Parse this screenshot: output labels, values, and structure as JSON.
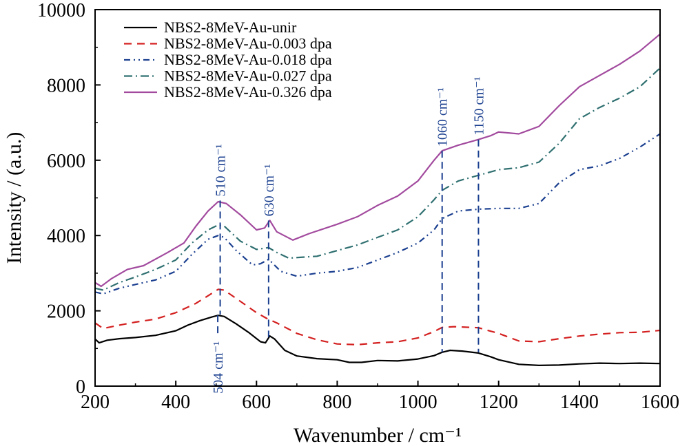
{
  "chart_data": {
    "type": "line",
    "xlabel": "Wavenumber / cm⁻¹",
    "ylabel": "Intensity / (a.u.)",
    "xlim": [
      200,
      1600
    ],
    "ylim": [
      0,
      10000
    ],
    "xticks": [
      200,
      400,
      600,
      800,
      1000,
      1200,
      1400,
      1600
    ],
    "yticks": [
      0,
      2000,
      4000,
      6000,
      8000,
      10000
    ],
    "grid": false,
    "legend_position": "top-left",
    "series": [
      {
        "name": "NBS2-8MeV-Au-unir",
        "color": "#000000",
        "dash": "solid",
        "points": [
          [
            200,
            1250
          ],
          [
            210,
            1150
          ],
          [
            230,
            1220
          ],
          [
            260,
            1260
          ],
          [
            300,
            1290
          ],
          [
            350,
            1350
          ],
          [
            400,
            1470
          ],
          [
            430,
            1620
          ],
          [
            460,
            1740
          ],
          [
            490,
            1840
          ],
          [
            505,
            1880
          ],
          [
            520,
            1850
          ],
          [
            550,
            1650
          ],
          [
            580,
            1430
          ],
          [
            610,
            1180
          ],
          [
            622,
            1150
          ],
          [
            633,
            1330
          ],
          [
            645,
            1250
          ],
          [
            670,
            950
          ],
          [
            700,
            800
          ],
          [
            750,
            730
          ],
          [
            800,
            700
          ],
          [
            830,
            630
          ],
          [
            860,
            630
          ],
          [
            900,
            680
          ],
          [
            950,
            670
          ],
          [
            1000,
            720
          ],
          [
            1040,
            810
          ],
          [
            1060,
            900
          ],
          [
            1080,
            950
          ],
          [
            1110,
            930
          ],
          [
            1150,
            880
          ],
          [
            1180,
            780
          ],
          [
            1200,
            700
          ],
          [
            1250,
            580
          ],
          [
            1300,
            550
          ],
          [
            1350,
            560
          ],
          [
            1400,
            590
          ],
          [
            1450,
            610
          ],
          [
            1500,
            600
          ],
          [
            1550,
            610
          ],
          [
            1600,
            600
          ]
        ]
      },
      {
        "name": "NBS2-8MeV-Au-0.003 dpa",
        "color": "#d42020",
        "dash": "dashed",
        "points": [
          [
            200,
            1680
          ],
          [
            220,
            1530
          ],
          [
            260,
            1620
          ],
          [
            300,
            1700
          ],
          [
            350,
            1780
          ],
          [
            400,
            1950
          ],
          [
            450,
            2200
          ],
          [
            480,
            2400
          ],
          [
            505,
            2570
          ],
          [
            520,
            2550
          ],
          [
            560,
            2250
          ],
          [
            600,
            1950
          ],
          [
            625,
            1800
          ],
          [
            650,
            1680
          ],
          [
            700,
            1400
          ],
          [
            750,
            1230
          ],
          [
            800,
            1120
          ],
          [
            850,
            1100
          ],
          [
            900,
            1150
          ],
          [
            950,
            1180
          ],
          [
            1000,
            1280
          ],
          [
            1040,
            1450
          ],
          [
            1060,
            1560
          ],
          [
            1090,
            1580
          ],
          [
            1150,
            1550
          ],
          [
            1200,
            1400
          ],
          [
            1250,
            1200
          ],
          [
            1300,
            1180
          ],
          [
            1350,
            1260
          ],
          [
            1400,
            1330
          ],
          [
            1450,
            1380
          ],
          [
            1500,
            1420
          ],
          [
            1550,
            1430
          ],
          [
            1600,
            1480
          ]
        ]
      },
      {
        "name": "NBS2-8MeV-Au-0.018 dpa",
        "color": "#1a3f8f",
        "dash": "dash-dot-dot",
        "points": [
          [
            200,
            2500
          ],
          [
            220,
            2450
          ],
          [
            260,
            2600
          ],
          [
            300,
            2700
          ],
          [
            350,
            2820
          ],
          [
            400,
            3050
          ],
          [
            440,
            3500
          ],
          [
            480,
            3900
          ],
          [
            505,
            4000
          ],
          [
            520,
            3950
          ],
          [
            550,
            3600
          ],
          [
            590,
            3220
          ],
          [
            610,
            3250
          ],
          [
            630,
            3370
          ],
          [
            660,
            3050
          ],
          [
            700,
            2920
          ],
          [
            750,
            3000
          ],
          [
            800,
            3050
          ],
          [
            850,
            3150
          ],
          [
            900,
            3350
          ],
          [
            950,
            3550
          ],
          [
            1000,
            3800
          ],
          [
            1040,
            4150
          ],
          [
            1060,
            4450
          ],
          [
            1100,
            4650
          ],
          [
            1150,
            4700
          ],
          [
            1200,
            4720
          ],
          [
            1250,
            4720
          ],
          [
            1300,
            4850
          ],
          [
            1350,
            5400
          ],
          [
            1400,
            5750
          ],
          [
            1450,
            5850
          ],
          [
            1500,
            6050
          ],
          [
            1550,
            6350
          ],
          [
            1600,
            6700
          ]
        ]
      },
      {
        "name": "NBS2-8MeV-Au-0.027 dpa",
        "color": "#2f6f70",
        "dash": "dash-dot",
        "points": [
          [
            200,
            2600
          ],
          [
            220,
            2550
          ],
          [
            260,
            2750
          ],
          [
            300,
            2900
          ],
          [
            350,
            3100
          ],
          [
            400,
            3350
          ],
          [
            440,
            3800
          ],
          [
            480,
            4150
          ],
          [
            505,
            4280
          ],
          [
            520,
            4250
          ],
          [
            560,
            3850
          ],
          [
            600,
            3630
          ],
          [
            630,
            3680
          ],
          [
            650,
            3550
          ],
          [
            680,
            3400
          ],
          [
            750,
            3450
          ],
          [
            800,
            3600
          ],
          [
            850,
            3750
          ],
          [
            900,
            3950
          ],
          [
            950,
            4150
          ],
          [
            1000,
            4500
          ],
          [
            1040,
            4950
          ],
          [
            1060,
            5200
          ],
          [
            1100,
            5450
          ],
          [
            1150,
            5600
          ],
          [
            1200,
            5750
          ],
          [
            1250,
            5800
          ],
          [
            1300,
            5950
          ],
          [
            1350,
            6450
          ],
          [
            1400,
            7100
          ],
          [
            1450,
            7400
          ],
          [
            1500,
            7650
          ],
          [
            1550,
            7950
          ],
          [
            1600,
            8450
          ]
        ]
      },
      {
        "name": "NBS2-8MeV-Au-0.326 dpa",
        "color": "#a24a9e",
        "dash": "solid",
        "points": [
          [
            200,
            2750
          ],
          [
            215,
            2650
          ],
          [
            240,
            2850
          ],
          [
            280,
            3100
          ],
          [
            320,
            3200
          ],
          [
            380,
            3550
          ],
          [
            420,
            3800
          ],
          [
            450,
            4250
          ],
          [
            480,
            4650
          ],
          [
            505,
            4900
          ],
          [
            525,
            4850
          ],
          [
            560,
            4550
          ],
          [
            600,
            4150
          ],
          [
            620,
            4200
          ],
          [
            633,
            4400
          ],
          [
            650,
            4100
          ],
          [
            690,
            3880
          ],
          [
            730,
            4050
          ],
          [
            800,
            4300
          ],
          [
            850,
            4500
          ],
          [
            900,
            4800
          ],
          [
            950,
            5050
          ],
          [
            1000,
            5450
          ],
          [
            1040,
            6000
          ],
          [
            1060,
            6250
          ],
          [
            1100,
            6400
          ],
          [
            1150,
            6550
          ],
          [
            1180,
            6650
          ],
          [
            1200,
            6750
          ],
          [
            1250,
            6700
          ],
          [
            1300,
            6900
          ],
          [
            1350,
            7450
          ],
          [
            1400,
            7950
          ],
          [
            1450,
            8250
          ],
          [
            1500,
            8550
          ],
          [
            1550,
            8900
          ],
          [
            1600,
            9350
          ]
        ]
      }
    ],
    "annotations": [
      {
        "label": "510 cm⁻¹",
        "x": 510,
        "y_top": 4930,
        "y_bottom": 1900,
        "text_anchor": "above"
      },
      {
        "label": "630 cm⁻¹",
        "x": 630,
        "y_top": 4400,
        "y_bottom": 1300,
        "text_anchor": "above"
      },
      {
        "label": "1060 cm⁻¹",
        "x": 1060,
        "y_top": 6250,
        "y_bottom": 900,
        "text_anchor": "above"
      },
      {
        "label": "1150 cm⁻¹",
        "x": 1150,
        "y_top": 6550,
        "y_bottom": 900,
        "text_anchor": "above"
      },
      {
        "label": "504 cm⁻¹",
        "x": 504,
        "y_top": 1880,
        "y_bottom": 1300,
        "text_anchor": "below"
      }
    ],
    "annotation_color": "#1a3f8f"
  }
}
